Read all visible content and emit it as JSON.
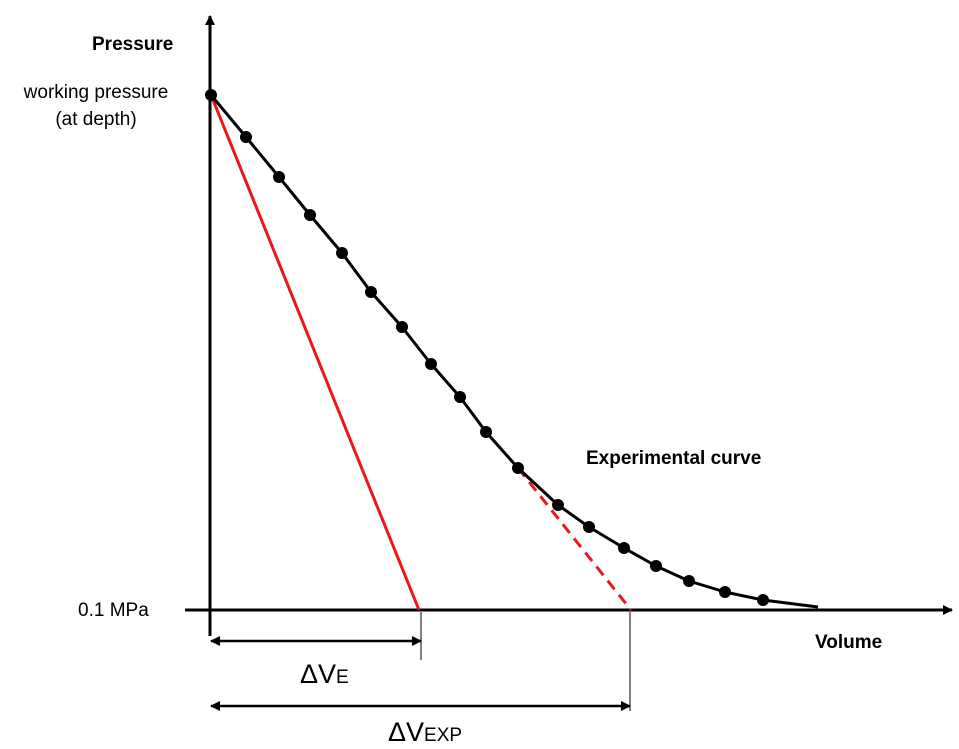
{
  "labels": {
    "y_axis": "Pressure",
    "x_axis": "Volume",
    "top_pressure_line1": "working pressure",
    "top_pressure_line2": "(at depth)",
    "bottom_pressure": "0.1 MPa",
    "curve_label": "Experimental curve",
    "delta_symbol": "ΔV",
    "dv_e_sub": "E",
    "dv_exp_sub": "EXP"
  },
  "colors": {
    "axis": "#000000",
    "curve": "#000000",
    "tangent": "#e8191c"
  }
}
